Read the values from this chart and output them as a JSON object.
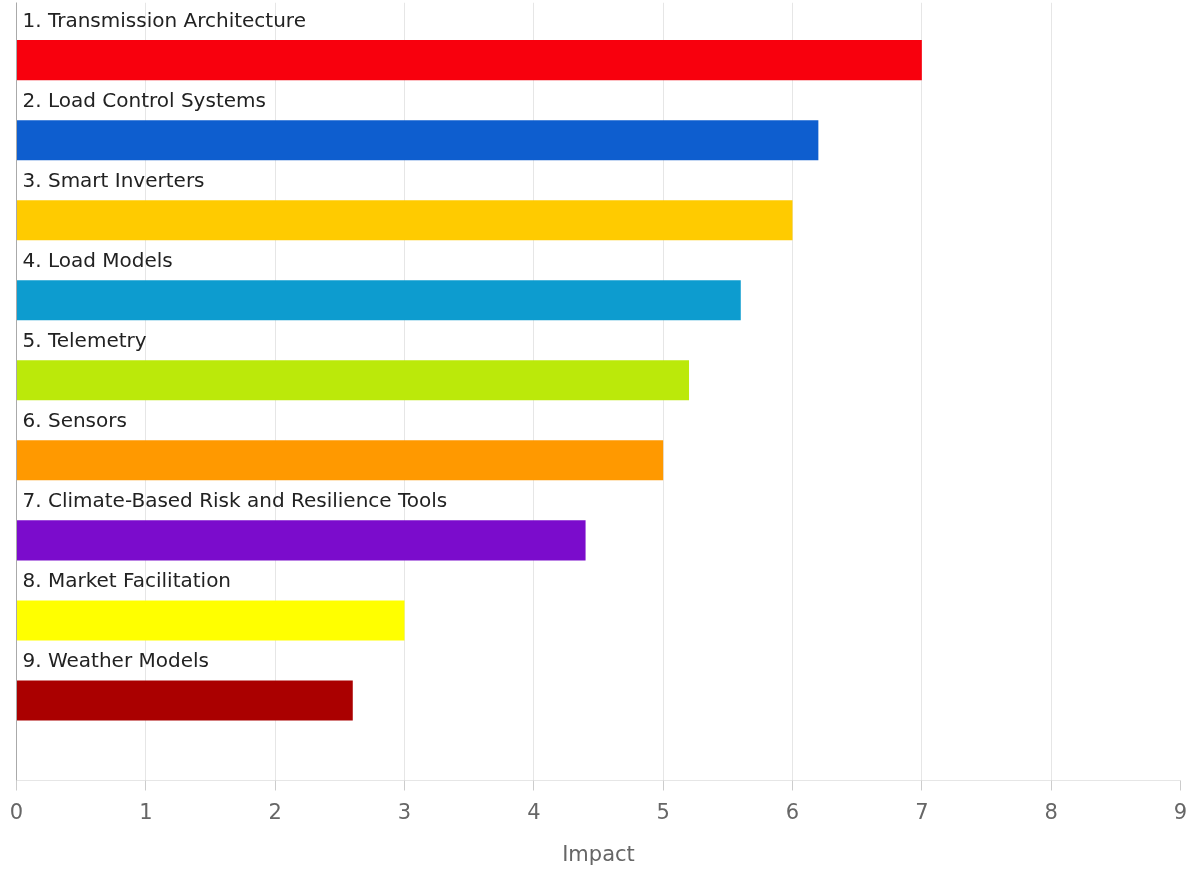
{
  "chart_data": {
    "type": "bar",
    "orientation": "horizontal",
    "categories": [
      "1. Transmission Architecture",
      "2. Load Control Systems",
      "3. Smart Inverters",
      "4. Load Models",
      "5. Telemetry",
      "6. Sensors",
      "7. Climate-Based Risk and Resilience Tools",
      "8. Market Facilitation",
      "9. Weather Models"
    ],
    "values": [
      7.0,
      6.2,
      6.0,
      5.6,
      5.2,
      5.0,
      4.4,
      3.0,
      2.6
    ],
    "colors": [
      "#f8000d",
      "#0e5ecf",
      "#ffcb00",
      "#0d9ccf",
      "#bbe90a",
      "#ff9900",
      "#7b0ccc",
      "#ffff00",
      "#aa0000"
    ],
    "xlim": [
      0,
      9
    ],
    "xticks": [
      0,
      1,
      2,
      3,
      4,
      5,
      6,
      7,
      8,
      9
    ],
    "xlabel": "Impact",
    "grid": "x"
  }
}
